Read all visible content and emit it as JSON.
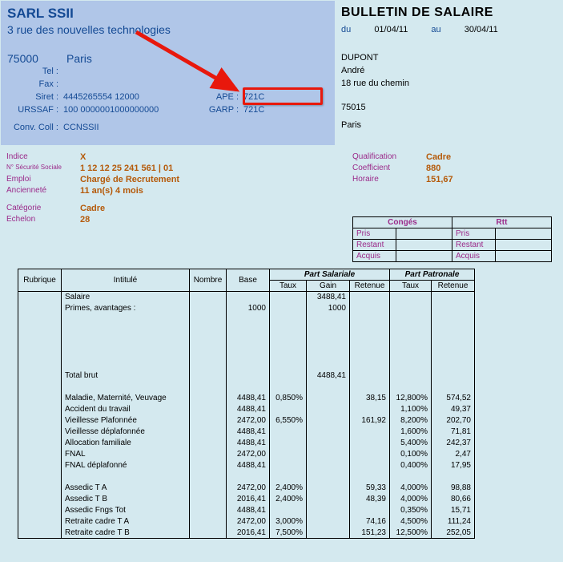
{
  "header": {
    "company_name": "SARL SSII",
    "company_addr": "3 rue des nouvelles technologies",
    "postcode": "75000",
    "city": "Paris",
    "tel_label": "Tel :",
    "fax_label": "Fax :",
    "siret_label": "Siret :",
    "siret": "4445265554 12000",
    "ape_label": "APE :",
    "ape": "721C",
    "urssaf_label": "URSSAF :",
    "urssaf": "100 0000001000000000",
    "garp_label": "GARP :",
    "garp": "721C",
    "conv_label": "Conv. Coll :",
    "conv": "CCNSSII"
  },
  "doc": {
    "title": "BULLETIN DE SALAIRE",
    "du_lbl": "du",
    "du": "01/04/11",
    "au_lbl": "au",
    "au": "30/04/11"
  },
  "employee": {
    "lastname": "DUPONT",
    "firstname": "André",
    "addr": "18 rue du chemin",
    "postcode": "75015",
    "city": "Paris"
  },
  "details_left": {
    "indice_lbl": "Indice",
    "indice": "X",
    "nss_lbl": "N° Sécurité Sociale",
    "nss": "1 12 12 25 241 561 | 01",
    "emploi_lbl": "Emploi",
    "emploi": "Chargé de Recrutement",
    "anc_lbl": "Ancienneté",
    "anc": "11 an(s) 4 mois",
    "cat_lbl": "Catégorie",
    "cat": "Cadre",
    "ech_lbl": "Echelon",
    "ech": "28"
  },
  "details_right": {
    "qual_lbl": "Qualification",
    "qual": "Cadre",
    "coef_lbl": "Coefficient",
    "coef": "880",
    "hor_lbl": "Horaire",
    "hor": "151,67"
  },
  "conges": {
    "h1": "Congés",
    "h2": "Rtt",
    "pris": "Pris",
    "restant": "Restant",
    "acquis": "Acquis"
  },
  "table": {
    "h_rub": "Rubrique",
    "h_int": "Intitulé",
    "h_nom": "Nombre",
    "h_base": "Base",
    "h_sal": "Part Salariale",
    "h_pat": "Part Patronale",
    "h_taux": "Taux",
    "h_gain": "Gain",
    "h_ret": "Retenue",
    "rows": [
      {
        "int": "Salaire",
        "nom": "",
        "base": "",
        "tx": "",
        "gain": "3488,41",
        "ret": "",
        "ptx": "",
        "pret": ""
      },
      {
        "int": "Primes, avantages :",
        "nom": "",
        "base": "1000",
        "tx": "",
        "gain": "1000",
        "ret": "",
        "ptx": "",
        "pret": ""
      },
      {
        "int": "",
        "nom": "",
        "base": "",
        "tx": "",
        "gain": "",
        "ret": "",
        "ptx": "",
        "pret": ""
      },
      {
        "int": "",
        "nom": "",
        "base": "",
        "tx": "",
        "gain": "",
        "ret": "",
        "ptx": "",
        "pret": ""
      },
      {
        "int": "",
        "nom": "",
        "base": "",
        "tx": "",
        "gain": "",
        "ret": "",
        "ptx": "",
        "pret": ""
      },
      {
        "int": "",
        "nom": "",
        "base": "",
        "tx": "",
        "gain": "",
        "ret": "",
        "ptx": "",
        "pret": ""
      },
      {
        "int": "",
        "nom": "",
        "base": "",
        "tx": "",
        "gain": "",
        "ret": "",
        "ptx": "",
        "pret": ""
      },
      {
        "int": "Total brut",
        "nom": "",
        "base": "",
        "tx": "",
        "gain": "4488,41",
        "ret": "",
        "ptx": "",
        "pret": ""
      },
      {
        "int": "",
        "nom": "",
        "base": "",
        "tx": "",
        "gain": "",
        "ret": "",
        "ptx": "",
        "pret": ""
      },
      {
        "int": "Maladie, Maternité, Veuvage",
        "nom": "",
        "base": "4488,41",
        "tx": "0,850%",
        "gain": "",
        "ret": "38,15",
        "ptx": "12,800%",
        "pret": "574,52"
      },
      {
        "int": "Accident du travail",
        "nom": "",
        "base": "4488,41",
        "tx": "",
        "gain": "",
        "ret": "",
        "ptx": "1,100%",
        "pret": "49,37"
      },
      {
        "int": "Vieillesse Plafonnée",
        "nom": "",
        "base": "2472,00",
        "tx": "6,550%",
        "gain": "",
        "ret": "161,92",
        "ptx": "8,200%",
        "pret": "202,70"
      },
      {
        "int": "Vieillesse déplafonnée",
        "nom": "",
        "base": "4488,41",
        "tx": "",
        "gain": "",
        "ret": "",
        "ptx": "1,600%",
        "pret": "71,81"
      },
      {
        "int": "Allocation familiale",
        "nom": "",
        "base": "4488,41",
        "tx": "",
        "gain": "",
        "ret": "",
        "ptx": "5,400%",
        "pret": "242,37"
      },
      {
        "int": "FNAL",
        "nom": "",
        "base": "2472,00",
        "tx": "",
        "gain": "",
        "ret": "",
        "ptx": "0,100%",
        "pret": "2,47"
      },
      {
        "int": "FNAL déplafonné",
        "nom": "",
        "base": "4488,41",
        "tx": "",
        "gain": "",
        "ret": "",
        "ptx": "0,400%",
        "pret": "17,95"
      },
      {
        "int": "",
        "nom": "",
        "base": "",
        "tx": "",
        "gain": "",
        "ret": "",
        "ptx": "",
        "pret": ""
      },
      {
        "int": "Assedic T A",
        "nom": "",
        "base": "2472,00",
        "tx": "2,400%",
        "gain": "",
        "ret": "59,33",
        "ptx": "4,000%",
        "pret": "98,88"
      },
      {
        "int": "Assedic T B",
        "nom": "",
        "base": "2016,41",
        "tx": "2,400%",
        "gain": "",
        "ret": "48,39",
        "ptx": "4,000%",
        "pret": "80,66"
      },
      {
        "int": "Assedic Fngs Tot",
        "nom": "",
        "base": "4488,41",
        "tx": "",
        "gain": "",
        "ret": "",
        "ptx": "0,350%",
        "pret": "15,71"
      },
      {
        "int": "Retraite cadre T A",
        "nom": "",
        "base": "2472,00",
        "tx": "3,000%",
        "gain": "",
        "ret": "74,16",
        "ptx": "4,500%",
        "pret": "111,24"
      },
      {
        "int": "Retraite cadre T B",
        "nom": "",
        "base": "2016,41",
        "tx": "7,500%",
        "gain": "",
        "ret": "151,23",
        "ptx": "12,500%",
        "pret": "252,05"
      }
    ]
  },
  "colors": {
    "bg": "#d4e9ef",
    "panel": "#b0c6e8",
    "blue": "#144a94",
    "purple": "#9b2a8a",
    "orange": "#b55a0a",
    "red": "#e8180c"
  }
}
